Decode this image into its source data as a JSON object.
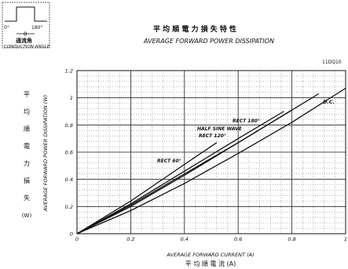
{
  "inset": {
    "left_deg": "0°",
    "right_deg": "180°",
    "theta": "θ",
    "jp_label": "通流角",
    "en_label": "CONDUCTION ANGLE"
  },
  "title_jp": "平 均 順 電 力 損 失 特 性",
  "title_en": "AVERAGE FORWARD POWER DISSIPATION",
  "part_no": "11DQ10",
  "ylabel_jp": [
    "平",
    "均",
    "順",
    "電",
    "力",
    "損",
    "失",
    "(W)"
  ],
  "chart_data": {
    "type": "line",
    "title": "AVERAGE FORWARD POWER DISSIPATION",
    "xlabel": "AVERAGE FORWARD CURRENT (A)",
    "xlabel_jp": "平 均 順 電 流 (A)",
    "ylabel": "AVERAGE FORWARD POWER DISSIPATION (W)",
    "xlim": [
      0,
      1.0
    ],
    "ylim": [
      0,
      1.2
    ],
    "xticks": [
      0,
      0.2,
      0.4,
      0.6,
      0.8,
      1.0
    ],
    "xtick_labels": [
      "0",
      "0.2",
      "0.4",
      "0.6",
      "0.8",
      "1"
    ],
    "yticks": [
      0,
      0.2,
      0.4,
      0.6,
      0.8,
      1.0,
      1.2
    ],
    "ytick_labels": [
      "0",
      "0.2",
      "0.4",
      "0.6",
      "0.8",
      "1",
      "1.2"
    ],
    "grid": true,
    "series": [
      {
        "name": "D.C.",
        "x": [
          0,
          0.2,
          0.4,
          0.6,
          0.8,
          1.0
        ],
        "y": [
          0,
          0.17,
          0.37,
          0.59,
          0.82,
          1.07
        ]
      },
      {
        "name": "RECT 180°",
        "x": [
          0,
          0.2,
          0.4,
          0.6,
          0.8,
          0.9
        ],
        "y": [
          0,
          0.2,
          0.43,
          0.67,
          0.91,
          1.03
        ]
      },
      {
        "name": "HALF SINE WAVE",
        "x": [
          0,
          0.2,
          0.4,
          0.6,
          0.8
        ],
        "y": [
          0,
          0.21,
          0.44,
          0.67,
          0.91
        ]
      },
      {
        "name": "RECT 120°",
        "x": [
          0,
          0.2,
          0.4,
          0.6,
          0.77
        ],
        "y": [
          0,
          0.22,
          0.46,
          0.7,
          0.9
        ]
      },
      {
        "name": "RECT 60°",
        "x": [
          0,
          0.2,
          0.4,
          0.52
        ],
        "y": [
          0,
          0.24,
          0.51,
          0.67
        ]
      }
    ],
    "annotations": [
      "D.C.",
      "RECT 180°",
      "HALF SINE WAVE",
      "RECT 120°",
      "RECT 60°"
    ]
  }
}
